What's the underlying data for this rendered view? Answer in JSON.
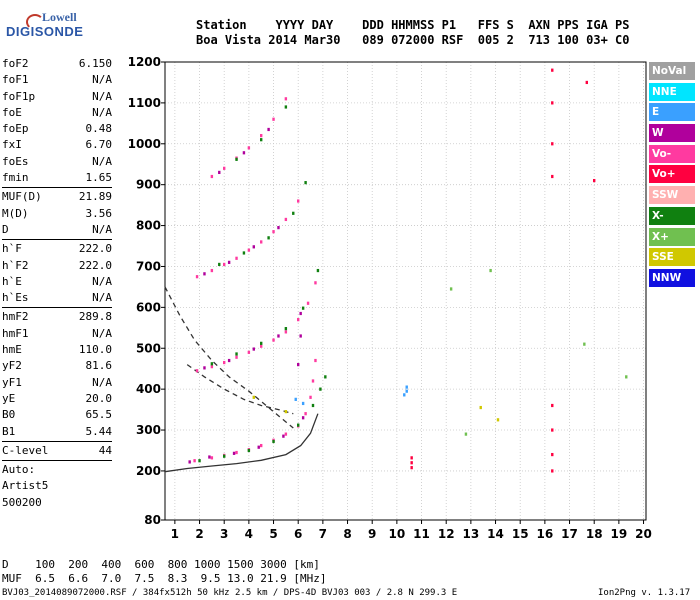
{
  "logo": {
    "line1": "Lowell",
    "line2": "DIGISONDE"
  },
  "header": {
    "row1": "Station    YYYY DAY    DDD HHMMSS P1   FFS S  AXN PPS IGA PS",
    "row2": "Boa Vista 2014 Mar30   089 072000 RSF  005 2  713 100 03+ C0"
  },
  "params": [
    {
      "label": "foF2",
      "value": "6.150"
    },
    {
      "label": "foF1",
      "value": "N/A"
    },
    {
      "label": "foF1p",
      "value": "N/A"
    },
    {
      "label": "foE",
      "value": "N/A"
    },
    {
      "label": "foEp",
      "value": "0.48"
    },
    {
      "label": "fxI",
      "value": "6.70"
    },
    {
      "label": "foEs",
      "value": "N/A"
    },
    {
      "label": "fmin",
      "value": "1.65"
    },
    {
      "sep": true
    },
    {
      "label": "MUF(D)",
      "value": "21.89"
    },
    {
      "label": "M(D)",
      "value": "3.56"
    },
    {
      "label": "D",
      "value": "N/A"
    },
    {
      "sep": true
    },
    {
      "label": "h`F",
      "value": "222.0"
    },
    {
      "label": "h`F2",
      "value": "222.0"
    },
    {
      "label": "h`E",
      "value": "N/A"
    },
    {
      "label": "h`Es",
      "value": "N/A"
    },
    {
      "sep": true
    },
    {
      "label": "hmF2",
      "value": "289.8"
    },
    {
      "label": "hmF1",
      "value": "N/A"
    },
    {
      "label": "hmE",
      "value": "110.0"
    },
    {
      "label": "yF2",
      "value": "81.6"
    },
    {
      "label": "yF1",
      "value": "N/A"
    },
    {
      "label": "yE",
      "value": "20.0"
    },
    {
      "label": "B0",
      "value": "65.5"
    },
    {
      "label": "B1",
      "value": "5.44"
    },
    {
      "sep": true
    },
    {
      "label": "C-level",
      "value": "44"
    },
    {
      "sep": true
    },
    {
      "label": "Auto:",
      "value": ""
    },
    {
      "label": "Artist5",
      "value": ""
    },
    {
      "label": "500200",
      "value": ""
    }
  ],
  "legend": [
    {
      "label": "NoVal",
      "bg": "#a0a0a0",
      "fg": "#ffffff"
    },
    {
      "label": "NNE",
      "bg": "#00e5ff",
      "fg": "#ffffff"
    },
    {
      "label": "E",
      "bg": "#3aa0ff",
      "fg": "#ffffff"
    },
    {
      "label": "W",
      "bg": "#b0009c",
      "fg": "#ffffff"
    },
    {
      "label": "Vo-",
      "bg": "#ff3aa0",
      "fg": "#ffffff"
    },
    {
      "label": "Vo+",
      "bg": "#ff0040",
      "fg": "#ffffff"
    },
    {
      "label": "SSW",
      "bg": "#ffb0b0",
      "fg": "#ffffff"
    },
    {
      "label": "X-",
      "bg": "#108010",
      "fg": "#ffffff"
    },
    {
      "label": "X+",
      "bg": "#70c050",
      "fg": "#ffffff"
    },
    {
      "label": "SSE",
      "bg": "#d0c800",
      "fg": "#ffffff"
    },
    {
      "label": "NNW",
      "bg": "#1010e0",
      "fg": "#ffffff"
    }
  ],
  "footer": {
    "row_d": "D    100  200  400  600  800 1000 1500 3000 [km]",
    "row_muf": "MUF  6.5  6.6  7.0  7.5  8.3  9.5 13.0 21.9 [MHz]",
    "file_info": "BVJ03_2014089072000.RSF / 384fx512h 50 kHz 2.5 km / DPS-4D BVJ03 003 / 2.8 N 299.3 E",
    "version": "Ion2Png v. 1.3.17"
  },
  "chart_data": {
    "type": "scatter",
    "title": "",
    "xlabel": "",
    "ylabel": "",
    "xlim": [
      0.6,
      20.1
    ],
    "ylim": [
      80,
      1200
    ],
    "x_ticks": [
      1,
      2,
      3,
      4,
      5,
      6,
      7,
      8,
      9,
      10,
      11,
      12,
      13,
      14,
      15,
      16,
      17,
      18,
      19,
      20
    ],
    "y_ticks": [
      80,
      200,
      300,
      400,
      500,
      600,
      700,
      800,
      900,
      1000,
      1100,
      1200
    ],
    "grid": true,
    "series": [
      {
        "color": "#ff3aa0",
        "points": [
          [
            1.9,
            445
          ],
          [
            2.5,
            455
          ],
          [
            3,
            465
          ],
          [
            3.5,
            478
          ],
          [
            4,
            490
          ],
          [
            4.5,
            505
          ],
          [
            5,
            520
          ],
          [
            5.5,
            540
          ],
          [
            6,
            570
          ],
          [
            6.4,
            610
          ],
          [
            6.7,
            660
          ],
          [
            1.9,
            675
          ],
          [
            2.5,
            690
          ],
          [
            3,
            705
          ],
          [
            3.5,
            720
          ],
          [
            4,
            740
          ],
          [
            4.5,
            760
          ],
          [
            5,
            785
          ],
          [
            5.5,
            815
          ],
          [
            6,
            860
          ],
          [
            2.5,
            920
          ],
          [
            3,
            940
          ],
          [
            3.5,
            965
          ],
          [
            4,
            990
          ],
          [
            4.5,
            1020
          ],
          [
            5,
            1060
          ],
          [
            5.5,
            1110
          ],
          [
            1.8,
            225
          ],
          [
            2.5,
            232
          ],
          [
            3,
            238
          ],
          [
            3.5,
            245
          ],
          [
            4,
            252
          ],
          [
            4.5,
            262
          ],
          [
            5,
            275
          ],
          [
            5.5,
            290
          ],
          [
            6,
            310
          ],
          [
            6.3,
            340
          ],
          [
            6.5,
            380
          ],
          [
            6.6,
            420
          ],
          [
            6.7,
            470
          ]
        ]
      },
      {
        "color": "#108010",
        "points": [
          [
            2.5,
            462
          ],
          [
            3.5,
            486
          ],
          [
            4.5,
            512
          ],
          [
            5.5,
            548
          ],
          [
            6.2,
            598
          ],
          [
            6.8,
            690
          ],
          [
            2.8,
            705
          ],
          [
            3.8,
            733
          ],
          [
            4.8,
            770
          ],
          [
            5.8,
            830
          ],
          [
            6.3,
            905
          ],
          [
            3.5,
            962
          ],
          [
            4.5,
            1010
          ],
          [
            5.5,
            1090
          ],
          [
            2,
            225
          ],
          [
            3,
            236
          ],
          [
            4,
            250
          ],
          [
            5,
            272
          ],
          [
            6,
            312
          ],
          [
            6.6,
            360
          ],
          [
            6.9,
            400
          ],
          [
            7.1,
            430
          ]
        ]
      },
      {
        "color": "#b0009c",
        "points": [
          [
            2.2,
            452
          ],
          [
            3.2,
            470
          ],
          [
            4.2,
            498
          ],
          [
            5.2,
            530
          ],
          [
            6.1,
            585
          ],
          [
            2.2,
            682
          ],
          [
            3.2,
            710
          ],
          [
            4.2,
            748
          ],
          [
            5.2,
            795
          ],
          [
            2.8,
            930
          ],
          [
            3.8,
            978
          ],
          [
            4.8,
            1035
          ],
          [
            1.6,
            222
          ],
          [
            2.4,
            234
          ],
          [
            3.4,
            243
          ],
          [
            4.4,
            258
          ],
          [
            5.4,
            285
          ],
          [
            6.2,
            330
          ],
          [
            6.0,
            460
          ],
          [
            6.1,
            530
          ]
        ]
      },
      {
        "color": "#ff0040",
        "points": [
          [
            10.6,
            232
          ],
          [
            10.6,
            220
          ],
          [
            10.6,
            208
          ],
          [
            16.3,
            1180
          ],
          [
            16.3,
            1100
          ],
          [
            16.3,
            1000
          ],
          [
            16.3,
            920
          ],
          [
            16.3,
            360
          ],
          [
            16.3,
            300
          ],
          [
            16.3,
            240
          ],
          [
            16.3,
            200
          ],
          [
            18,
            910
          ],
          [
            17.7,
            1150
          ]
        ]
      },
      {
        "color": "#3aa0ff",
        "points": [
          [
            10.4,
            405
          ],
          [
            10.4,
            395
          ],
          [
            10.3,
            386
          ],
          [
            5.9,
            375
          ],
          [
            6.2,
            365
          ]
        ]
      },
      {
        "color": "#d0c800",
        "points": [
          [
            13.4,
            355
          ],
          [
            14.1,
            325
          ],
          [
            4.2,
            380
          ],
          [
            5.5,
            345
          ]
        ]
      },
      {
        "color": "#70c050",
        "points": [
          [
            12.8,
            290
          ],
          [
            13.8,
            690
          ],
          [
            12.2,
            645
          ],
          [
            17.6,
            510
          ],
          [
            19.3,
            430
          ]
        ]
      }
    ],
    "lines": [
      {
        "style": "dashed",
        "color": "#333333",
        "points": [
          [
            0.6,
            650
          ],
          [
            1.2,
            580
          ],
          [
            1.8,
            520
          ],
          [
            2.5,
            470
          ],
          [
            3.2,
            430
          ],
          [
            4,
            395
          ],
          [
            4.7,
            360
          ],
          [
            5.3,
            330
          ],
          [
            5.8,
            305
          ]
        ]
      },
      {
        "style": "dashed",
        "color": "#333333",
        "points": [
          [
            1.5,
            460
          ],
          [
            2.2,
            430
          ],
          [
            3,
            400
          ],
          [
            3.8,
            375
          ],
          [
            4.5,
            360
          ],
          [
            5.2,
            350
          ],
          [
            5.8,
            340
          ]
        ]
      },
      {
        "style": "solid",
        "color": "#333333",
        "points": [
          [
            0.6,
            198
          ],
          [
            1.5,
            206
          ],
          [
            2.5,
            212
          ],
          [
            3.5,
            218
          ],
          [
            4.5,
            226
          ],
          [
            5.5,
            240
          ],
          [
            6.1,
            262
          ],
          [
            6.5,
            292
          ],
          [
            6.8,
            340
          ]
        ]
      }
    ]
  }
}
